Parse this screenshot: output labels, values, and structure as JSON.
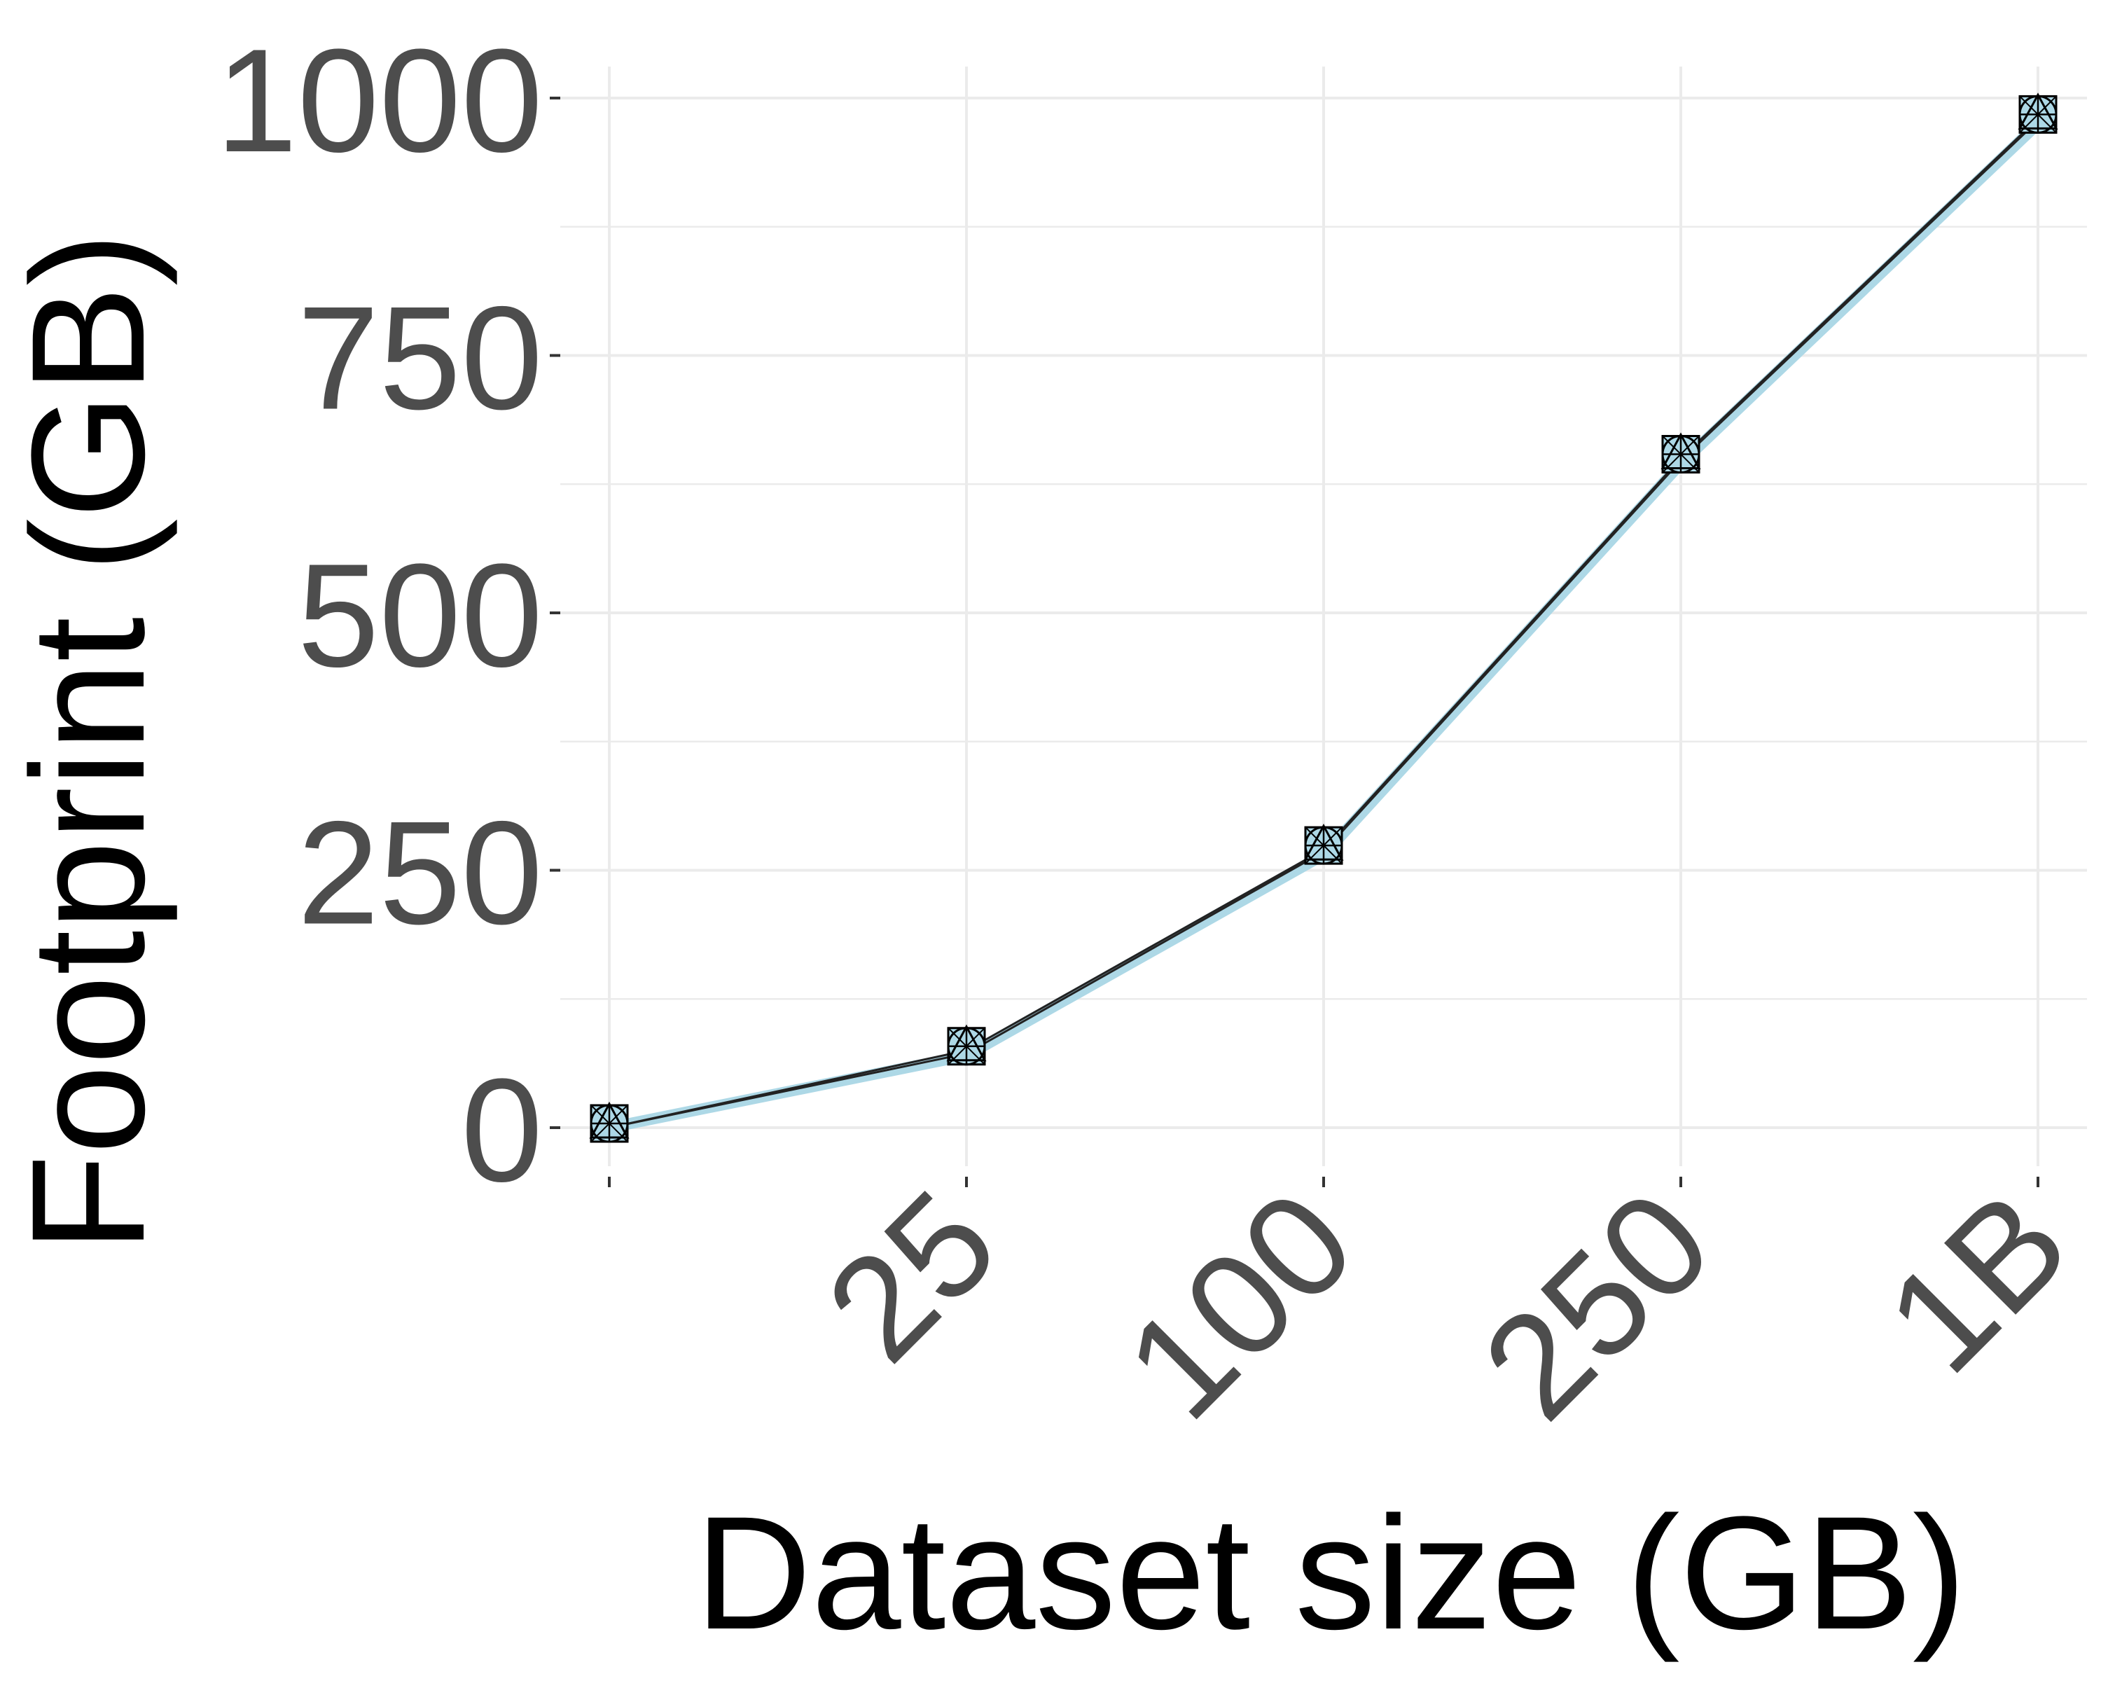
{
  "chart_data": {
    "type": "line",
    "title": "",
    "xlabel": "Dataset size (GB)",
    "ylabel": "Footprint (GB)",
    "categories": [
      "",
      "25",
      "100",
      "250",
      "1B"
    ],
    "ylim": [
      0,
      1000
    ],
    "yticks": [
      0,
      250,
      500,
      750,
      1000
    ],
    "ytick_labels": [
      "0",
      "250",
      "500",
      "750",
      "1000"
    ],
    "grid": true,
    "legend": "none",
    "series": [
      {
        "marker": "square",
        "color": "#000000",
        "values": [
          0,
          75,
          270,
          650,
          980
        ]
      },
      {
        "marker": "circle",
        "color": "#000000",
        "values": [
          0,
          72,
          268,
          648,
          978
        ]
      },
      {
        "marker": "triangle",
        "color": "#add8e6",
        "values": [
          0,
          70,
          265,
          645,
          975
        ]
      }
    ],
    "colors": {
      "line_main": "#add8e6",
      "line_thin": "#222222",
      "grid": "#ebebeb",
      "tick_text": "#4d4d4d",
      "title_text": "#000000"
    }
  }
}
